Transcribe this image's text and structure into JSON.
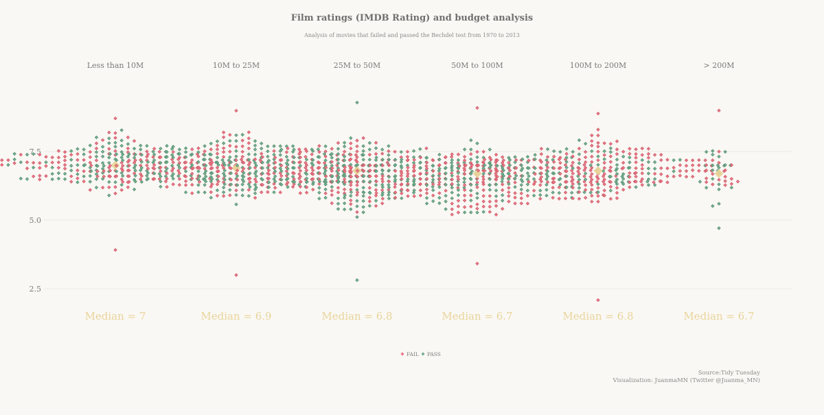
{
  "title": "Film ratings (IMDB Rating) and budget analysis",
  "subtitle": "Analysis of movies that failed and passed the Bechdel test from 1970 to 2013",
  "caption": {
    "source": "Source:Tidy Tuesday",
    "visualization": "Visualization: JuanmaMN (Twitter @Juanma_MN)"
  },
  "colors": {
    "fail": "#e8717f",
    "pass": "#6faa8b",
    "median": "#e8d49a",
    "background": "#faf8f4",
    "grid": "#eceae4",
    "text": "#7a7a7a"
  },
  "chart_data": {
    "type": "scatter",
    "subtype": "beeswarm",
    "y_label": "",
    "ylim": [
      1.8,
      9.6
    ],
    "y_ticks": [
      "2.5",
      "5.0",
      "7.5"
    ],
    "y_tick_values": [
      2.5,
      5.0,
      7.5
    ],
    "grid": "horizontal",
    "legend": {
      "position": "bottom",
      "entries": [
        {
          "label": "FAIL",
          "color_key": "fail"
        },
        {
          "label": "PASS",
          "color_key": "pass"
        }
      ]
    },
    "categories": [
      {
        "label": "Less than 10M",
        "median": 7.0,
        "median_label": "Median = 7",
        "count": 240,
        "mode": 7.05,
        "spread": 0.9,
        "min": 3.9,
        "max": 8.7,
        "fail_share": 0.5
      },
      {
        "label": "10M to 25M",
        "median": 6.9,
        "median_label": "Median = 6.9",
        "count": 360,
        "mode": 6.9,
        "spread": 1.0,
        "min": 3.0,
        "max": 9.0,
        "fail_share": 0.5
      },
      {
        "label": "25M to 50M",
        "median": 6.8,
        "median_label": "Median = 6.8",
        "count": 400,
        "mode": 6.75,
        "spread": 1.05,
        "min": 2.8,
        "max": 9.3,
        "fail_share": 0.5
      },
      {
        "label": "50M to 100M",
        "median": 6.7,
        "median_label": "Median = 6.7",
        "count": 390,
        "mode": 6.5,
        "spread": 1.05,
        "min": 3.4,
        "max": 9.1,
        "fail_share": 0.55
      },
      {
        "label": "100M to 200M",
        "median": 6.8,
        "median_label": "Median = 6.8",
        "count": 260,
        "mode": 6.9,
        "spread": 1.0,
        "min": 2.1,
        "max": 8.9,
        "fail_share": 0.65
      },
      {
        "label": "> 200M",
        "median": 6.7,
        "median_label": "Median = 6.7",
        "count": 38,
        "mode": 6.7,
        "spread": 0.9,
        "min": 4.7,
        "max": 9.0,
        "fail_share": 0.6
      }
    ]
  }
}
